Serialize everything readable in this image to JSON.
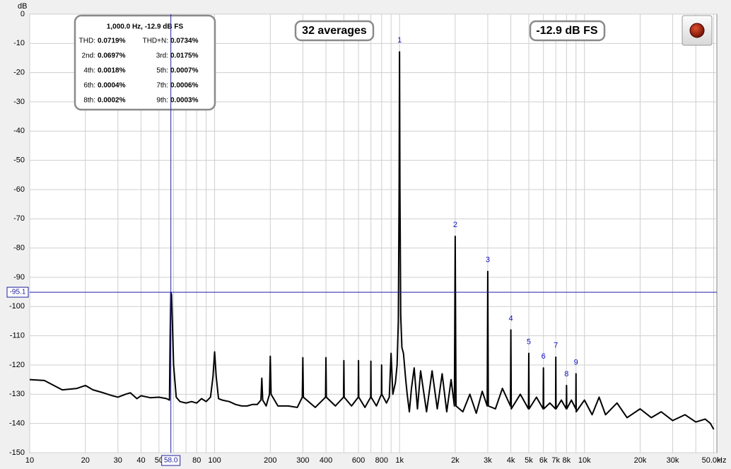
{
  "chart_data": {
    "type": "line",
    "ylabel": "dB",
    "xlabel": "Hz",
    "xscale": "log",
    "grid": true,
    "xlim": [
      10,
      52000
    ],
    "ylim": [
      -150,
      0
    ],
    "yticks": [
      0,
      -10,
      -20,
      -30,
      -40,
      -50,
      -60,
      -70,
      -80,
      -90,
      -100,
      -110,
      -120,
      -130,
      -140,
      -150
    ],
    "xticks": [
      10,
      20,
      30,
      40,
      50,
      80,
      100,
      200,
      300,
      400,
      600,
      800,
      {
        "value": 1000,
        "label": "1k"
      },
      {
        "value": 2000,
        "label": "2k"
      },
      {
        "value": 3000,
        "label": "3k"
      },
      {
        "value": 4000,
        "label": "4k"
      },
      {
        "value": 5000,
        "label": "5k"
      },
      {
        "value": 6000,
        "label": "6k"
      },
      {
        "value": 7000,
        "label": "7k"
      },
      {
        "value": 8000,
        "label": "8k"
      },
      {
        "value": 10000,
        "label": "10k"
      },
      {
        "value": 20000,
        "label": "20k"
      },
      {
        "value": 30000,
        "label": "30k"
      },
      {
        "value": 50000,
        "label": "50.0k"
      }
    ],
    "xminor": [
      60,
      70,
      90,
      500,
      700,
      900,
      9000,
      40000
    ],
    "x": [
      10,
      12,
      15,
      18,
      20,
      22,
      25,
      28,
      30,
      33,
      35,
      38,
      40,
      45,
      50,
      55,
      57,
      57.5,
      58,
      58.5,
      60,
      62,
      65,
      70,
      75,
      80,
      85,
      90,
      95,
      98,
      100,
      102,
      105,
      110,
      120,
      130,
      140,
      150,
      160,
      170,
      178,
      180,
      182,
      190,
      198,
      200,
      202,
      220,
      250,
      280,
      298,
      300,
      302,
      350,
      398,
      400,
      402,
      450,
      498,
      500,
      502,
      550,
      598,
      600,
      602,
      650,
      698,
      700,
      702,
      750,
      798,
      800,
      802,
      850,
      880,
      900,
      920,
      950,
      970,
      985,
      995,
      1000,
      1005,
      1015,
      1030,
      1050,
      1080,
      1100,
      1130,
      1160,
      1200,
      1250,
      1300,
      1400,
      1500,
      1600,
      1700,
      1800,
      1900,
      1980,
      2000,
      2020,
      2200,
      2400,
      2600,
      2800,
      2980,
      3000,
      3020,
      3300,
      3600,
      3980,
      4000,
      4020,
      4500,
      4980,
      5000,
      5020,
      5500,
      5980,
      6000,
      6020,
      6500,
      6980,
      7000,
      7020,
      7500,
      7980,
      8000,
      8020,
      8500,
      8980,
      9000,
      9020,
      10000,
      11000,
      12000,
      13000,
      15000,
      17000,
      20000,
      23000,
      26000,
      30000,
      35000,
      40000,
      45000,
      48000,
      50000
    ],
    "series": [
      {
        "color": "#000000",
        "values": [
          -125,
          -125.3,
          -128.5,
          -128,
          -127,
          -128.5,
          -129.5,
          -130.5,
          -131,
          -130,
          -129.5,
          -131.5,
          -130.5,
          -131.2,
          -131,
          -131.5,
          -132,
          -110,
          -95.1,
          -96,
          -120,
          -131,
          -132.5,
          -133,
          -132.5,
          -133,
          -131.5,
          -132.5,
          -131,
          -124,
          -115.5,
          -124,
          -131.5,
          -132,
          -132.5,
          -133.5,
          -134,
          -134,
          -133.5,
          -133.5,
          -132,
          -124.5,
          -132,
          -134,
          -130,
          -117,
          -130,
          -134,
          -134,
          -134.5,
          -131,
          -117.5,
          -131,
          -134.5,
          -131,
          -117.5,
          -131,
          -134,
          -131,
          -118.5,
          -131,
          -134,
          -131,
          -118.5,
          -131,
          -134.5,
          -131,
          -118.7,
          -131,
          -134,
          -130,
          -120,
          -130,
          -133,
          -131,
          -116,
          -130,
          -126,
          -120,
          -105,
          -60,
          -12.9,
          -60,
          -103,
          -114,
          -116,
          -125,
          -130,
          -136,
          -128,
          -121,
          -135,
          -122,
          -136,
          -122,
          -135,
          -123,
          -136,
          -125,
          -134,
          -76,
          -134,
          -136,
          -130,
          -136.5,
          -129,
          -134,
          -88,
          -134,
          -135,
          -128,
          -134,
          -108,
          -135,
          -130,
          -135,
          -116,
          -135,
          -131,
          -135,
          -121,
          -135,
          -133,
          -135,
          -117.3,
          -135,
          -132,
          -135,
          -127,
          -135,
          -132,
          -135,
          -123,
          -136,
          -132,
          -137,
          -131,
          -137,
          -133,
          -138,
          -135,
          -138,
          -136,
          -139,
          -137,
          -139.5,
          -138.5,
          -140,
          -142
        ]
      }
    ],
    "markers": [
      {
        "label": 1,
        "x": 1000,
        "y": -12.9
      },
      {
        "label": 2,
        "x": 2000,
        "y": -76
      },
      {
        "label": 3,
        "x": 3000,
        "y": -88
      },
      {
        "label": 4,
        "x": 4000,
        "y": -108
      },
      {
        "label": 5,
        "x": 5000,
        "y": -116
      },
      {
        "label": 6,
        "x": 6000,
        "y": -121
      },
      {
        "label": 7,
        "x": 7000,
        "y": -117.3
      },
      {
        "label": 8,
        "x": 8000,
        "y": -127
      },
      {
        "label": 9,
        "x": 9000,
        "y": -123
      }
    ],
    "cursor": {
      "x": {
        "value": 58.0,
        "label": "58.0"
      },
      "y": -95.1
    },
    "readout": {
      "title": "1,000.0 Hz, -12.9 dB FS",
      "rows": [
        [
          "THD:",
          "0.0719%",
          "THD+N:",
          "0.0734%"
        ],
        [
          "2nd:",
          "0.0697%",
          "3rd:",
          "0.0175%"
        ],
        [
          "4th:",
          "0.0018%",
          "5th:",
          "0.0007%"
        ],
        [
          "6th:",
          "0.0004%",
          "7th:",
          "0.0006%"
        ],
        [
          "8th:",
          "0.0002%",
          "9th:",
          "0.0003%"
        ]
      ]
    },
    "averages": "32 averages",
    "level": "-12.9 dB FS"
  }
}
